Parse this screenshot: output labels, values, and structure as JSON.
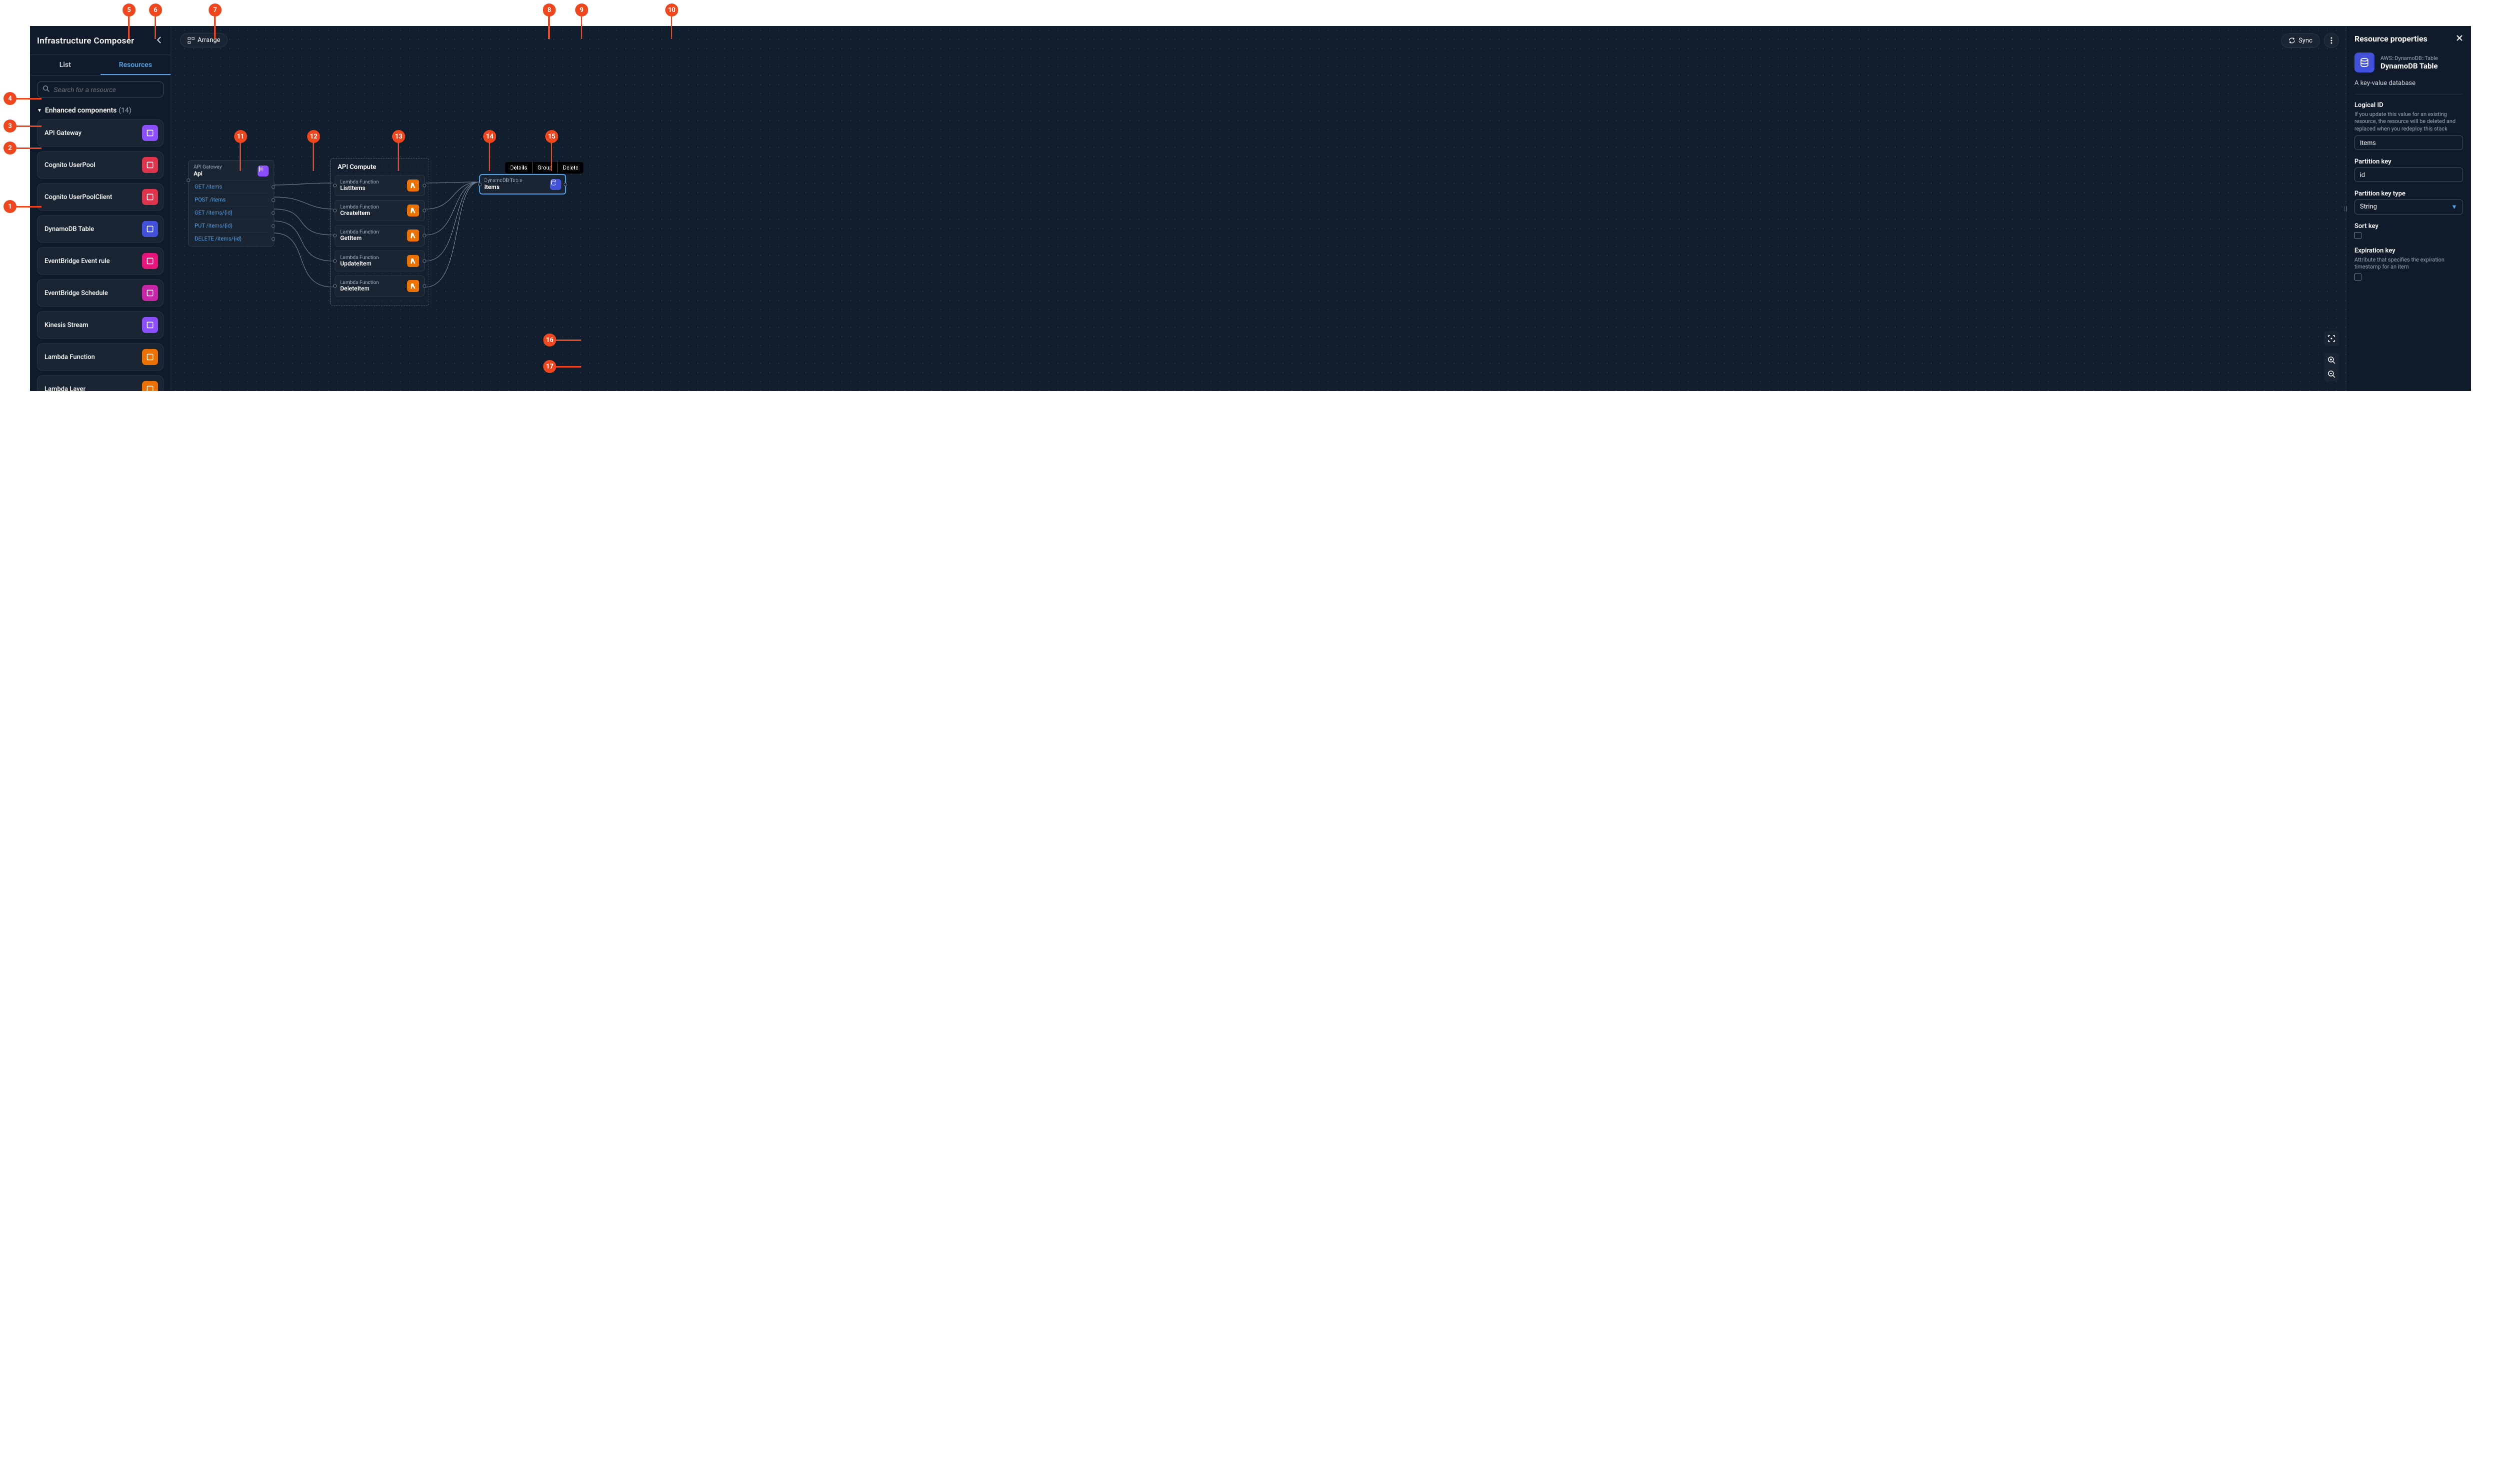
{
  "sidebar": {
    "title": "Infrastructure Composer",
    "tabs": {
      "list": "List",
      "resources": "Resources",
      "active": "resources"
    },
    "search_placeholder": "Search for a resource",
    "section": {
      "title": "Enhanced components",
      "count": "(14)"
    },
    "resources": [
      {
        "label": "API Gateway",
        "icon_color": "#8c4fff"
      },
      {
        "label": "Cognito UserPool",
        "icon_color": "#dd344c"
      },
      {
        "label": "Cognito UserPoolClient",
        "icon_color": "#dd344c"
      },
      {
        "label": "DynamoDB Table",
        "icon_color": "#4151d9"
      },
      {
        "label": "EventBridge Event rule",
        "icon_color": "#e7157b"
      },
      {
        "label": "EventBridge Schedule",
        "icon_color": "#c925a8"
      },
      {
        "label": "Kinesis Stream",
        "icon_color": "#8c4fff"
      },
      {
        "label": "Lambda Function",
        "icon_color": "#ed7100"
      },
      {
        "label": "Lambda Layer",
        "icon_color": "#ed7100"
      }
    ]
  },
  "toolbar": {
    "arrange": "Arrange",
    "sync": "Sync"
  },
  "canvas": {
    "api_node": {
      "type_label": "API Gateway",
      "name": "Api",
      "icon_color": "#8c4fff",
      "routes": [
        "GET /items",
        "POST /items",
        "GET /items/{id}",
        "PUT /items/{id}",
        "DELETE /items/{id}"
      ]
    },
    "compute_group": {
      "title": "API Compute",
      "lambdas": [
        {
          "type": "Lambda Function",
          "name": "ListItems"
        },
        {
          "type": "Lambda Function",
          "name": "CreateItem"
        },
        {
          "type": "Lambda Function",
          "name": "GetItem"
        },
        {
          "type": "Lambda Function",
          "name": "UpdateItem"
        },
        {
          "type": "Lambda Function",
          "name": "DeleteItem"
        }
      ],
      "lambda_icon_color": "#ed7100"
    },
    "ddb_node": {
      "type_label": "DynamoDB Table",
      "name": "Items",
      "icon_color": "#4151d9"
    },
    "context_menu": {
      "details": "Details",
      "group": "Group",
      "delete": "Delete"
    }
  },
  "props": {
    "panel_title": "Resource properties",
    "type": "AWS::DynamoDB::Table",
    "name": "DynamoDB Table",
    "desc": "A key-value database",
    "logical_id_label": "Logical ID",
    "logical_id_help": "If you update this value for an existing resource, the resource will be deleted and replaced when you redeploy this stack",
    "logical_id_value": "Items",
    "pk_label": "Partition key",
    "pk_value": "id",
    "pk_type_label": "Partition key type",
    "pk_type_value": "String",
    "sk_label": "Sort key",
    "exp_label": "Expiration key",
    "exp_help": "Attribute that specifies the expiration timestamp for an item"
  },
  "callouts": {
    "1": "1",
    "2": "2",
    "3": "3",
    "4": "4",
    "5": "5",
    "6": "6",
    "7": "7",
    "8": "8",
    "9": "9",
    "10": "10",
    "11": "11",
    "12": "12",
    "13": "13",
    "14": "14",
    "15": "15",
    "16": "16",
    "17": "17"
  }
}
